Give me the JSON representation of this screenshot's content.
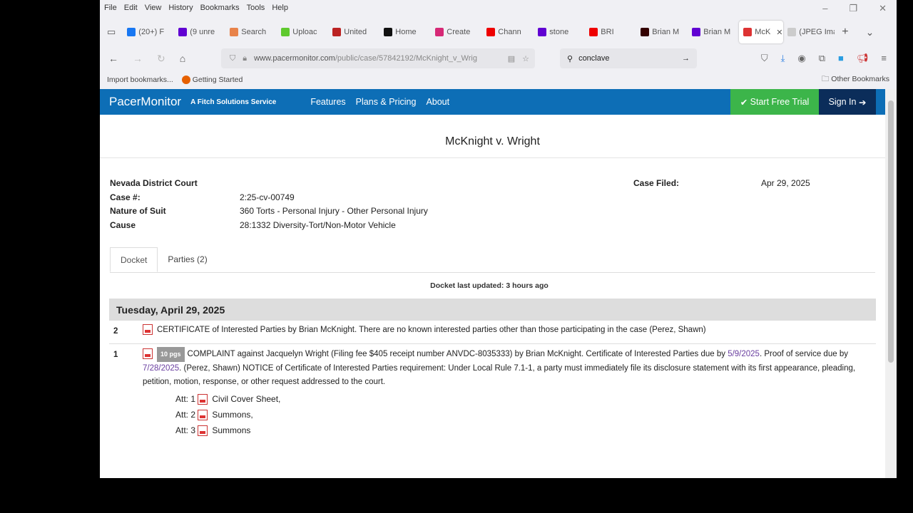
{
  "browser": {
    "menu": [
      "File",
      "Edit",
      "View",
      "History",
      "Bookmarks",
      "Tools",
      "Help"
    ],
    "tabs": [
      {
        "label": "(20+) F",
        "color": "#1877f2"
      },
      {
        "label": "(9 unre",
        "color": "#6001d2"
      },
      {
        "label": "Search",
        "color": "#e8834a"
      },
      {
        "label": "Uploac",
        "color": "#5fc92e"
      },
      {
        "label": "United",
        "color": "#b22"
      },
      {
        "label": "Home",
        "color": "#111"
      },
      {
        "label": "Create",
        "color": "#d62976"
      },
      {
        "label": "Chann",
        "color": "#e00"
      },
      {
        "label": "stone",
        "color": "#6001d2"
      },
      {
        "label": "BRI",
        "color": "#e00"
      },
      {
        "label": "Brian M",
        "color": "#300"
      },
      {
        "label": "Brian M",
        "color": "#6001d2"
      },
      {
        "label": "McK",
        "color": "#d33",
        "active": true
      },
      {
        "label": "(JPEG Imag",
        "color": "#ccc"
      }
    ],
    "url_domain": "www.pacermonitor.com",
    "url_path": "/public/case/57842192/McKnight_v_Wrig",
    "search_value": "conclave",
    "bookmarks": [
      "Import bookmarks...",
      "Getting Started"
    ],
    "other_bookmarks": "Other Bookmarks"
  },
  "site": {
    "logo": "PacerMonitor",
    "tagline": "A Fitch Solutions Service",
    "nav": [
      "Features",
      "Plans & Pricing",
      "About"
    ],
    "trial": "Start Free Trial",
    "signin": "Sign In",
    "colors": {
      "header": "#0d6eb6",
      "trial": "#3cb54a",
      "signin": "#0b2d5a"
    }
  },
  "case": {
    "title": "McKnight v. Wright",
    "court": "Nevada District Court",
    "case_no_label": "Case #:",
    "case_no": "2:25-cv-00749",
    "nos_label": "Nature of Suit",
    "nos": "360 Torts - Personal Injury - Other Personal Injury",
    "cause_label": "Cause",
    "cause": "28:1332 Diversity-Tort/Non-Motor Vehicle",
    "filed_label": "Case Filed:",
    "filed": "Apr 29, 2025"
  },
  "tabs": [
    "Docket",
    "Parties (2)"
  ],
  "docket": {
    "updated": "Docket last updated: 3 hours ago",
    "date": "Tuesday, April 29, 2025",
    "entries": [
      {
        "num": "2",
        "text": "CERTIFICATE of Interested Parties by Brian McKnight. There are no known interested parties other than those participating in the case (Perez, Shawn)"
      },
      {
        "num": "1",
        "pages": "10 pgs",
        "text1": "COMPLAINT against Jacquelyn Wright (Filing fee $405 receipt number ANVDC-8035333) by Brian McKnight. Certificate of Interested Parties due by ",
        "link1": "5/9/2025",
        "text2": ". Proof of service due by ",
        "link2": "7/28/2025",
        "text3": ". (Perez, Shawn) NOTICE of Certificate of Interested Parties requirement: Under Local Rule 7.1-1, a party must immediately file its disclosure statement with its first appearance, pleading, petition, motion, response, or other request addressed to the court.",
        "attachments": [
          {
            "label": "Att: 1",
            "name": "Civil Cover Sheet,"
          },
          {
            "label": "Att: 2",
            "name": "Summons,"
          },
          {
            "label": "Att: 3",
            "name": "Summons"
          }
        ]
      }
    ]
  }
}
